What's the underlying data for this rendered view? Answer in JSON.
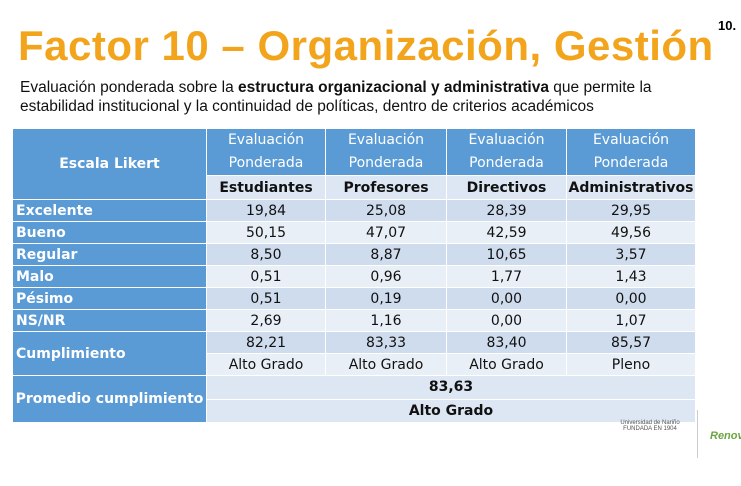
{
  "header": {
    "title": "Factor 10 – Organización, Gestión",
    "page": "10."
  },
  "description": {
    "intro": "Evaluación ponderada sobre la ",
    "bold": "estructura organizacional y administrativa",
    "rest": " que permite la estabilidad institucional y la continuidad de políticas, dentro de criterios académicos"
  },
  "table": {
    "scale_header": "Escala Likert",
    "group_headers": [
      "Evaluación Ponderada",
      "Evaluación Ponderada",
      "Evaluación Ponderada",
      "Evaluación Ponderada"
    ],
    "columns": [
      "Estudiantes",
      "Profesores",
      "Directivos",
      "Administrativos"
    ],
    "rows": [
      [
        "Excelente",
        "19,84",
        "25,08",
        "28,39",
        "29,95"
      ],
      [
        "Bueno",
        "50,15",
        "47,07",
        "42,59",
        "49,56"
      ],
      [
        "Regular",
        "8,50",
        "8,87",
        "10,65",
        "3,57"
      ],
      [
        "Malo",
        "0,51",
        "0,96",
        "1,77",
        "1,43"
      ],
      [
        "Pésimo",
        "0,51",
        "0,19",
        "0,00",
        "0,00"
      ],
      [
        "NS/NR",
        "2,69",
        "1,16",
        "0,00",
        "1,07"
      ]
    ],
    "compliance": {
      "label": "Cumplimiento",
      "values": [
        "82,21",
        "83,33",
        "83,40",
        "85,57"
      ],
      "grades": [
        "Alto Grado",
        "Alto Grado",
        "Alto Grado",
        "Pleno"
      ]
    },
    "average": {
      "label": "Promedio cumplimiento",
      "value": "83,63",
      "grade": "Alto Grado"
    }
  },
  "logos": {
    "university": "Universidad de Nariño",
    "founded": "FUNDADA EN 1904",
    "brand": "Renov"
  }
}
